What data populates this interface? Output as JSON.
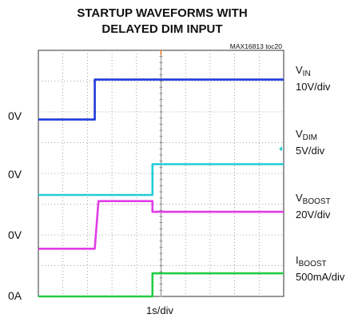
{
  "chart_data": {
    "type": "line",
    "title_line1": "STARTUP WAVEFORMS WITH",
    "title_line2": "DELAYED DIM INPUT",
    "figure_ref": "MAX16813 toc20",
    "xlabel": "1s/div",
    "time_divisions": 10,
    "vertical_divisions": 8,
    "channels": [
      {
        "name_main": "V",
        "name_sub": "IN",
        "scale": "10V/div",
        "ground_label": "0V",
        "ground_div": 2.25,
        "color": "#1f3bd8",
        "points": [
          [
            0,
            0
          ],
          [
            2.3,
            0
          ],
          [
            2.3,
            1.3
          ],
          [
            10,
            1.3
          ]
        ]
      },
      {
        "name_main": "V",
        "name_sub": "DIM",
        "scale": "5V/div",
        "ground_label": "0V",
        "ground_div": 4.7,
        "color": "#22ccd8",
        "points": [
          [
            0,
            0
          ],
          [
            4.65,
            0
          ],
          [
            4.65,
            1.0
          ],
          [
            10,
            1.0
          ]
        ]
      },
      {
        "name_main": "V",
        "name_sub": "BOOST",
        "scale": "20V/div",
        "ground_label": "0V",
        "ground_div": 6.45,
        "color": "#e23ce6",
        "points": [
          [
            0,
            0
          ],
          [
            2.3,
            0
          ],
          [
            2.45,
            1.55
          ],
          [
            4.65,
            1.55
          ],
          [
            4.65,
            1.2
          ],
          [
            10,
            1.2
          ]
        ]
      },
      {
        "name_main": "I",
        "name_sub": "BOOST",
        "scale": "500mA/div",
        "ground_label": "0A",
        "ground_div": 8.0,
        "color": "#22cc44",
        "points": [
          [
            0,
            0
          ],
          [
            4.65,
            0
          ],
          [
            4.65,
            0.75
          ],
          [
            10,
            0.75
          ]
        ]
      }
    ]
  }
}
